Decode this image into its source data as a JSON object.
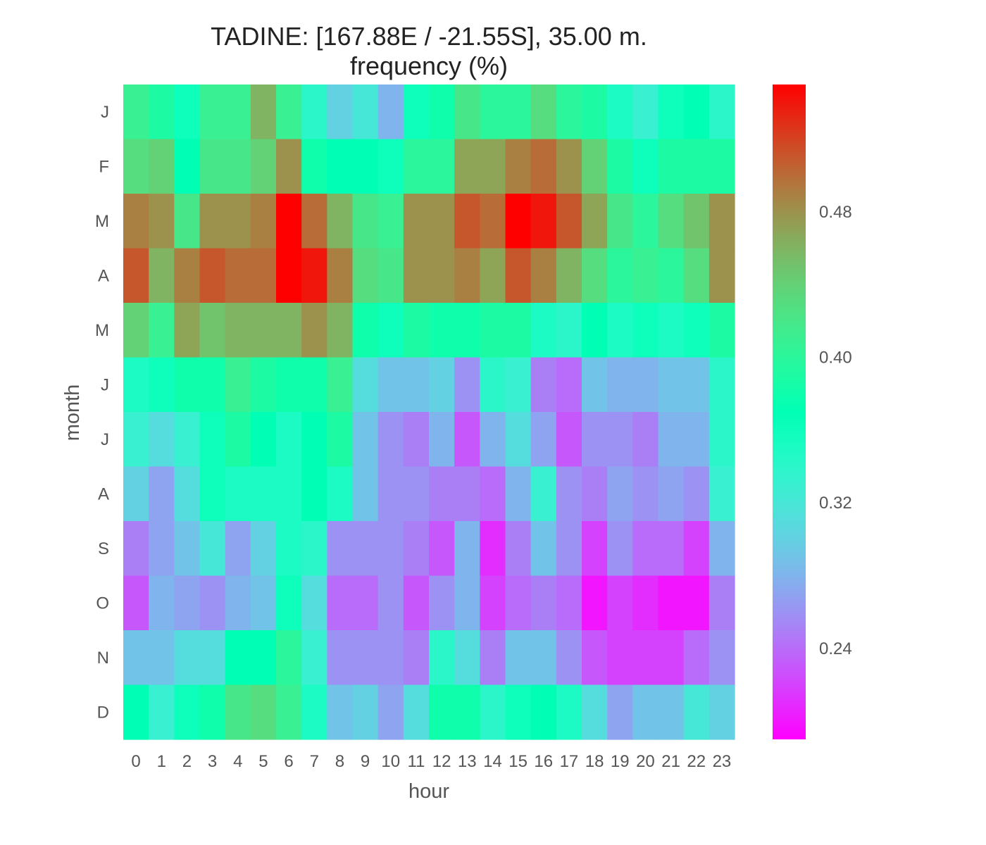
{
  "chart_data": {
    "type": "heatmap",
    "title": "TADINE: [167.88E / -21.55S], 35.00 m.",
    "subtitle": "frequency (%)",
    "xlabel": "hour",
    "ylabel": "month",
    "x_categories": [
      "0",
      "1",
      "2",
      "3",
      "4",
      "5",
      "6",
      "7",
      "8",
      "9",
      "10",
      "11",
      "12",
      "13",
      "14",
      "15",
      "16",
      "17",
      "18",
      "19",
      "20",
      "21",
      "22",
      "23"
    ],
    "y_categories": [
      "J",
      "F",
      "M",
      "A",
      "M",
      "J",
      "J",
      "A",
      "S",
      "O",
      "N",
      "D"
    ],
    "colorbar": {
      "range": [
        0.19,
        0.55
      ],
      "ticks": [
        "0.24",
        "0.32",
        "0.40",
        "0.48"
      ],
      "tick_values": [
        0.24,
        0.32,
        0.4,
        0.48
      ],
      "colormap": "rainbow"
    },
    "values": [
      [
        0.41,
        0.39,
        0.36,
        0.41,
        0.41,
        0.46,
        0.41,
        0.34,
        0.3,
        0.32,
        0.28,
        0.36,
        0.38,
        0.42,
        0.4,
        0.4,
        0.43,
        0.4,
        0.39,
        0.35,
        0.33,
        0.36,
        0.37,
        0.34
      ],
      [
        0.43,
        0.44,
        0.37,
        0.42,
        0.42,
        0.44,
        0.48,
        0.38,
        0.37,
        0.37,
        0.36,
        0.4,
        0.4,
        0.47,
        0.47,
        0.49,
        0.5,
        0.48,
        0.44,
        0.39,
        0.36,
        0.39,
        0.39,
        0.39
      ],
      [
        0.49,
        0.48,
        0.42,
        0.48,
        0.48,
        0.49,
        0.55,
        0.5,
        0.46,
        0.42,
        0.41,
        0.48,
        0.48,
        0.51,
        0.5,
        0.55,
        0.54,
        0.51,
        0.47,
        0.42,
        0.4,
        0.43,
        0.45,
        0.48
      ],
      [
        0.51,
        0.46,
        0.49,
        0.51,
        0.5,
        0.5,
        0.55,
        0.54,
        0.49,
        0.43,
        0.42,
        0.48,
        0.48,
        0.49,
        0.47,
        0.51,
        0.49,
        0.46,
        0.43,
        0.4,
        0.41,
        0.4,
        0.43,
        0.48
      ],
      [
        0.44,
        0.41,
        0.47,
        0.45,
        0.46,
        0.46,
        0.46,
        0.48,
        0.46,
        0.38,
        0.36,
        0.39,
        0.38,
        0.38,
        0.39,
        0.39,
        0.35,
        0.34,
        0.37,
        0.35,
        0.36,
        0.35,
        0.36,
        0.39
      ],
      [
        0.35,
        0.36,
        0.38,
        0.38,
        0.41,
        0.39,
        0.38,
        0.38,
        0.41,
        0.31,
        0.29,
        0.29,
        0.3,
        0.26,
        0.34,
        0.33,
        0.25,
        0.24,
        0.29,
        0.28,
        0.28,
        0.29,
        0.29,
        0.34
      ],
      [
        0.33,
        0.31,
        0.33,
        0.36,
        0.39,
        0.37,
        0.35,
        0.37,
        0.39,
        0.29,
        0.26,
        0.25,
        0.28,
        0.23,
        0.28,
        0.31,
        0.27,
        0.23,
        0.26,
        0.26,
        0.25,
        0.28,
        0.28,
        0.34
      ],
      [
        0.3,
        0.27,
        0.31,
        0.36,
        0.35,
        0.35,
        0.35,
        0.37,
        0.35,
        0.29,
        0.26,
        0.26,
        0.25,
        0.25,
        0.24,
        0.28,
        0.33,
        0.26,
        0.25,
        0.27,
        0.26,
        0.27,
        0.26,
        0.33
      ],
      [
        0.25,
        0.27,
        0.29,
        0.32,
        0.27,
        0.3,
        0.35,
        0.34,
        0.26,
        0.26,
        0.26,
        0.25,
        0.23,
        0.28,
        0.21,
        0.25,
        0.29,
        0.26,
        0.22,
        0.26,
        0.24,
        0.24,
        0.22,
        0.28
      ],
      [
        0.23,
        0.28,
        0.27,
        0.26,
        0.28,
        0.29,
        0.36,
        0.31,
        0.24,
        0.24,
        0.26,
        0.23,
        0.26,
        0.28,
        0.22,
        0.24,
        0.25,
        0.24,
        0.2,
        0.22,
        0.21,
        0.2,
        0.2,
        0.25
      ],
      [
        0.29,
        0.29,
        0.31,
        0.31,
        0.37,
        0.37,
        0.4,
        0.33,
        0.26,
        0.26,
        0.26,
        0.25,
        0.34,
        0.31,
        0.25,
        0.29,
        0.29,
        0.26,
        0.23,
        0.22,
        0.22,
        0.22,
        0.24,
        0.26
      ],
      [
        0.37,
        0.33,
        0.36,
        0.38,
        0.42,
        0.43,
        0.41,
        0.35,
        0.29,
        0.3,
        0.27,
        0.31,
        0.38,
        0.38,
        0.34,
        0.36,
        0.37,
        0.35,
        0.31,
        0.27,
        0.29,
        0.29,
        0.32,
        0.3
      ]
    ]
  }
}
